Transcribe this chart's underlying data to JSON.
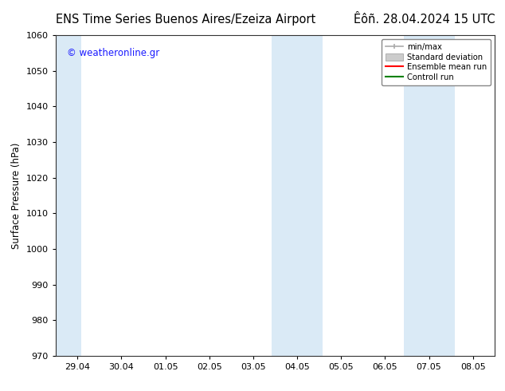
{
  "title_left": "ENS Time Series Buenos Aires/Ezeiza Airport",
  "title_right": "Êôñ. 28.04.2024 15 UTC",
  "ylabel": "Surface Pressure (hPa)",
  "ylim": [
    970,
    1060
  ],
  "yticks": [
    970,
    980,
    990,
    1000,
    1010,
    1020,
    1030,
    1040,
    1050,
    1060
  ],
  "xtick_labels": [
    "29.04",
    "30.04",
    "01.05",
    "02.05",
    "03.05",
    "04.05",
    "05.05",
    "06.05",
    "07.05",
    "08.05"
  ],
  "xtick_positions": [
    0,
    1,
    2,
    3,
    4,
    5,
    6,
    7,
    8,
    9
  ],
  "xlim": [
    -0.5,
    9.5
  ],
  "shaded_regions": [
    {
      "x_start": -0.5,
      "x_end": 0.08,
      "color": "#daeaf6"
    },
    {
      "x_start": 4.42,
      "x_end": 5.58,
      "color": "#daeaf6"
    },
    {
      "x_start": 7.42,
      "x_end": 8.58,
      "color": "#daeaf6"
    }
  ],
  "watermark": "© weatheronline.gr",
  "watermark_color": "#1a1aff",
  "background_color": "#ffffff",
  "plot_bg_color": "#ffffff",
  "legend_items": [
    {
      "label": "min/max",
      "color": "#aaaaaa",
      "lw": 1.2
    },
    {
      "label": "Standard deviation",
      "color": "#cccccc",
      "lw": 6
    },
    {
      "label": "Ensemble mean run",
      "color": "#ff0000",
      "lw": 1.5
    },
    {
      "label": "Controll run",
      "color": "#008000",
      "lw": 1.5
    }
  ],
  "title_fontsize": 10.5,
  "tick_fontsize": 8,
  "label_fontsize": 8.5
}
